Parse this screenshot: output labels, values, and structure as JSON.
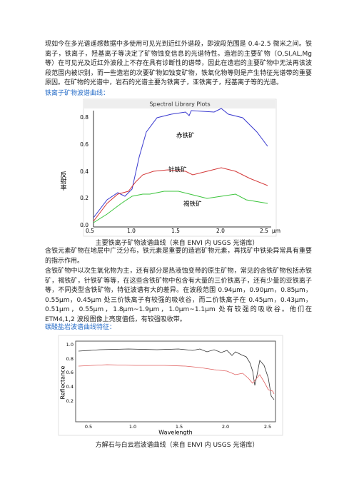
{
  "paragraphs": [
    "现如今在多光谱遥感数据中多使用可见光到近红外谱段，即波段范围是 0.4-2.5 微米之间。铁离子，铁离子，羟基离子等决定了矿物蚀变信息的光谱特性。造岩的主要矿物（O,SI,AL,Mg 等）在可见光及近红外波段上不存在具有诊断性的谱带，因此在造岩的主要矿物中无法再该波段范围内被识别，而一些造岩的次要矿物如蚀变矿物，铁氧化物等则是产生特征光谱带的重要原因。在矿物的光谱中，岩石的光谱主要为铁离子，亚铁离子，羟基离子等的光谱。",
    "含铁元素矿物在地层中广泛分布，铁元素是重要的造岩矿物元素，再找矿中铁染异常具有重要的指示作用。",
    "含铁矿物中以次生氧化物为主，还有部分是热液蚀变带的原生矿物，常见的含铁矿物包括赤铁矿，褐铁矿，针铁矿等等，在这些含铁矿物中包含有大量的三价铁离子，还有少量的亚铁离子等，不同类型含铁矿物，特征波谱有大的差异。在波段范围 0.94μm，0.90μm，0.85μm，0.55μm，0.45μm 处三价铁离子有较强的吸收谷，而二价铁离子在 0.45μm，0.43μm，0.51μm，0.55μm，1.8μm~1.9μm，1.0μm~1.1μm 处有较强的吸收谷。他们在 ETM4,1,2 波段图像上亮度值低，有较强吸收带。"
  ],
  "headings": [
    "铁离子矿物波谱曲线：",
    "碳酸盐岩波谱曲线特征："
  ],
  "figures": [
    {
      "title": "Spectral Library Plots",
      "y_axis_label": "反射率",
      "labels": [
        "赤铁矿",
        "针铁矿",
        "褐铁矿"
      ],
      "yticks": [
        "0.0",
        "0.2",
        "0.4",
        "0.6",
        "0.8"
      ],
      "xticks": [
        "0.5",
        "1.0",
        "1.5",
        "2.0",
        "2.5"
      ],
      "x_unit": "μm",
      "caption": "主要铁离子矿物波谱曲线（来自 ENVI 内 USGS 光谱库）"
    },
    {
      "y_axis_label": "Reflectance",
      "yticks": [
        "1.0",
        "0.8",
        "0.6",
        "0.4",
        "0.2"
      ],
      "xticks": [
        "0.5",
        "1.0",
        "1.5",
        "2.0",
        "2.5"
      ],
      "x_axis_label": "Wavelength",
      "caption": "方解石与白云岩波谱曲线（来自 ENVI 内 USGS 光谱库）"
    }
  ]
}
